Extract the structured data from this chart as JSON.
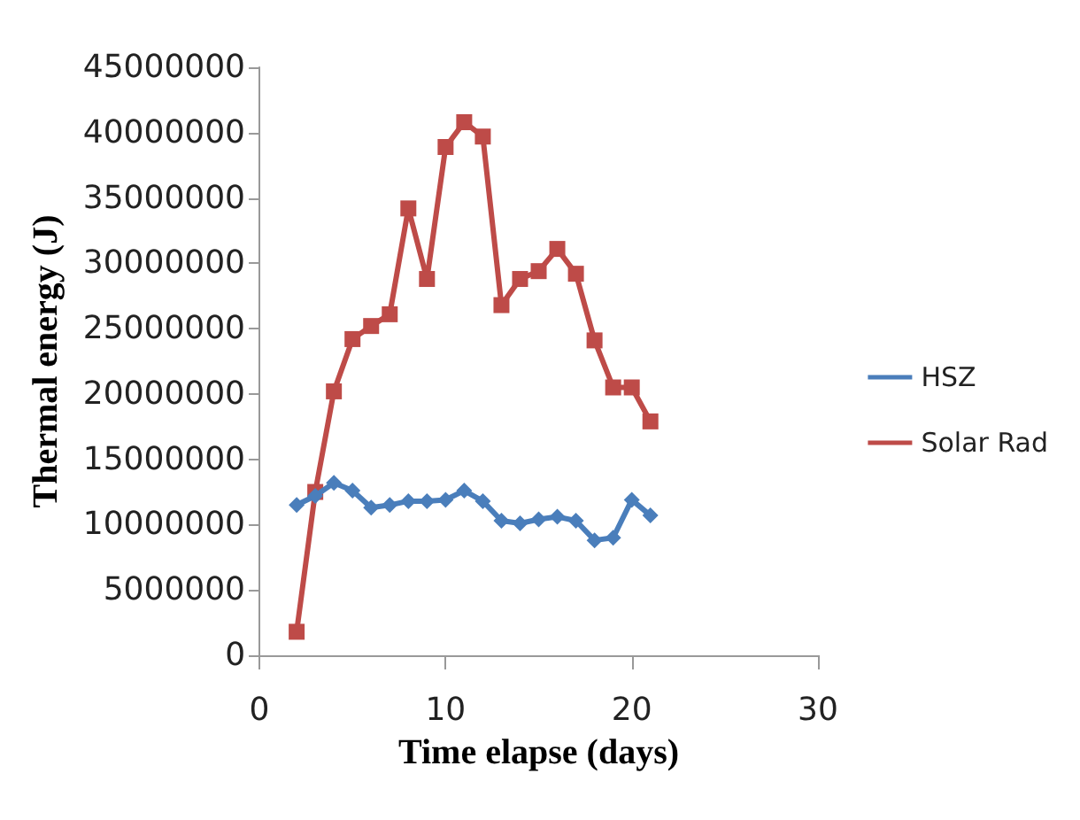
{
  "chart_data": {
    "type": "line",
    "xlabel": "Time elapse (days)",
    "ylabel": "Thermal energy (J)",
    "xlim": [
      0,
      30
    ],
    "xticks": [
      0,
      10,
      20,
      30
    ],
    "ylim": [
      0,
      45000000
    ],
    "yticks": [
      0,
      5000000,
      10000000,
      15000000,
      20000000,
      25000000,
      30000000,
      35000000,
      40000000,
      45000000
    ],
    "x": [
      2,
      3,
      4,
      5,
      6,
      7,
      8,
      9,
      10,
      11,
      12,
      13,
      14,
      15,
      16,
      17,
      18,
      19,
      20,
      21
    ],
    "grid": false,
    "legend": "right",
    "series": [
      {
        "name": "HSZ",
        "color": "#4a7ebb",
        "marker": "diamond",
        "values": [
          11500000,
          12200000,
          13200000,
          12600000,
          11300000,
          11500000,
          11800000,
          11800000,
          11900000,
          12600000,
          11800000,
          10300000,
          10100000,
          10400000,
          10600000,
          10300000,
          8800000,
          9000000,
          11900000,
          10700000
        ]
      },
      {
        "name": "Solar Rad",
        "color": "#be4b48",
        "marker": "square",
        "values": [
          1800000,
          12500000,
          20200000,
          24200000,
          25200000,
          26100000,
          34200000,
          28800000,
          38900000,
          40800000,
          39700000,
          26800000,
          28800000,
          29400000,
          31100000,
          29200000,
          24100000,
          20500000,
          20500000,
          17900000
        ]
      }
    ]
  }
}
